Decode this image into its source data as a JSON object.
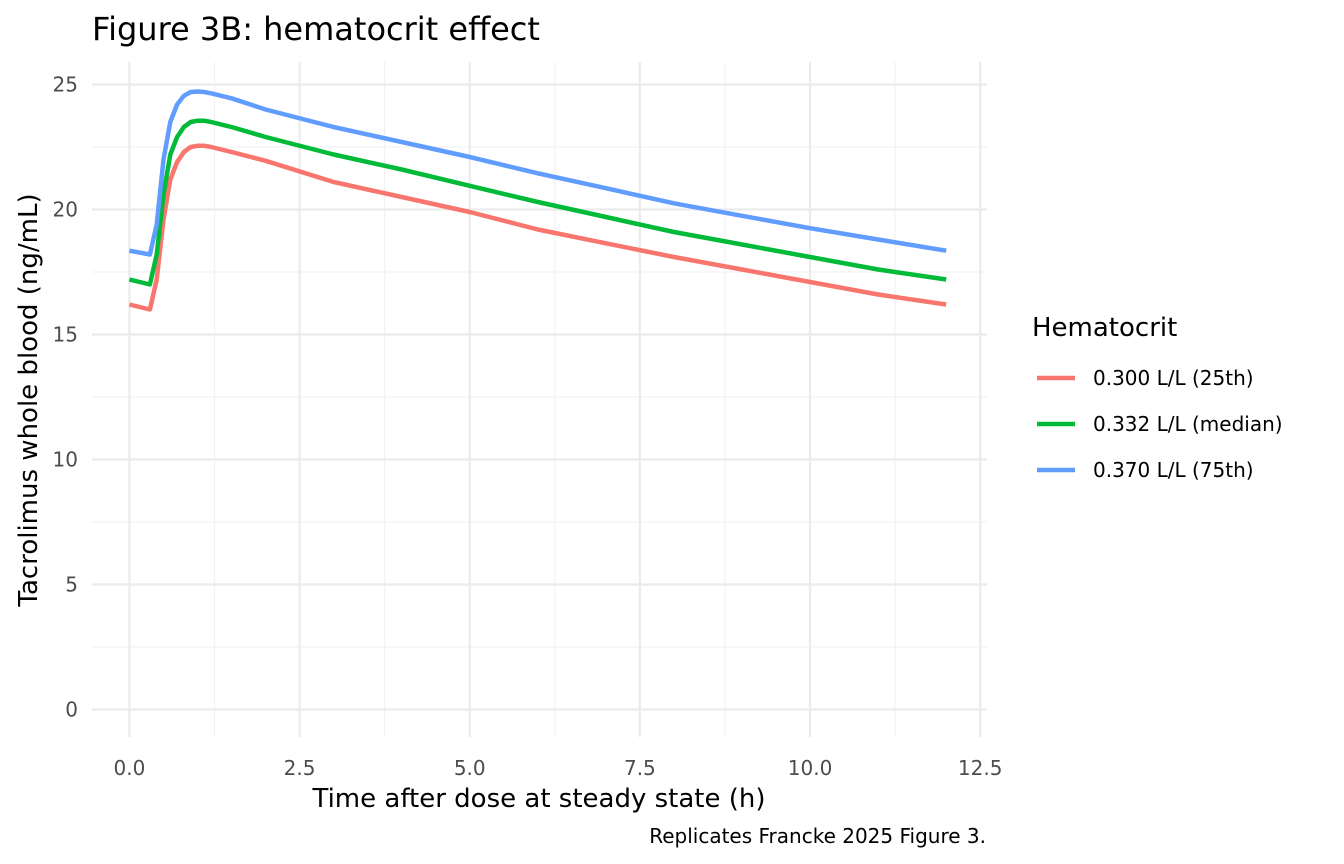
{
  "chart_data": {
    "type": "line",
    "title": "Figure 3B: hematocrit effect",
    "xlabel": "Time after dose at steady state (h)",
    "ylabel": "Tacrolimus whole blood (ng/mL)",
    "caption": "Replicates Francke 2025 Figure 3.",
    "xlim": [
      -0.55,
      12.6
    ],
    "ylim": [
      -1.1,
      25.9
    ],
    "x_ticks": [
      "0.0",
      "2.5",
      "5.0",
      "7.5",
      "10.0",
      "12.5"
    ],
    "y_ticks": [
      "0",
      "5",
      "10",
      "15",
      "20",
      "25"
    ],
    "grid": true,
    "legend": {
      "title": "Hematocrit",
      "position": "right"
    },
    "series": [
      {
        "name": "0.300 L/L (25th)",
        "color": "#F8766D",
        "x": [
          0.0,
          0.3,
          0.4,
          0.5,
          0.6,
          0.7,
          0.8,
          0.9,
          1.0,
          1.1,
          1.2,
          1.5,
          2.0,
          3.0,
          4.0,
          5.0,
          6.0,
          7.0,
          8.0,
          9.0,
          10.0,
          11.0,
          12.0
        ],
        "y": [
          16.2,
          16.0,
          17.2,
          19.6,
          21.2,
          21.9,
          22.3,
          22.5,
          22.55,
          22.55,
          22.5,
          22.3,
          21.95,
          21.1,
          20.5,
          19.9,
          19.2,
          18.65,
          18.1,
          17.6,
          17.1,
          16.6,
          16.2
        ]
      },
      {
        "name": "0.332 L/L (median)",
        "color": "#00BA38",
        "x": [
          0.0,
          0.3,
          0.4,
          0.5,
          0.6,
          0.7,
          0.8,
          0.9,
          1.0,
          1.1,
          1.2,
          1.5,
          2.0,
          3.0,
          4.0,
          5.0,
          6.0,
          7.0,
          8.0,
          9.0,
          10.0,
          11.0,
          12.0
        ],
        "y": [
          17.2,
          17.0,
          18.2,
          20.6,
          22.2,
          22.9,
          23.3,
          23.5,
          23.55,
          23.55,
          23.5,
          23.3,
          22.9,
          22.2,
          21.6,
          20.95,
          20.3,
          19.7,
          19.1,
          18.6,
          18.1,
          17.6,
          17.2
        ]
      },
      {
        "name": "0.370 L/L (75th)",
        "color": "#619CFF",
        "x": [
          0.0,
          0.3,
          0.4,
          0.5,
          0.6,
          0.7,
          0.8,
          0.9,
          1.0,
          1.1,
          1.2,
          1.5,
          2.0,
          3.0,
          4.0,
          5.0,
          6.0,
          7.0,
          8.0,
          9.0,
          10.0,
          11.0,
          12.0
        ],
        "y": [
          18.35,
          18.2,
          19.4,
          22.0,
          23.5,
          24.2,
          24.55,
          24.7,
          24.72,
          24.7,
          24.65,
          24.45,
          24.0,
          23.3,
          22.7,
          22.1,
          21.45,
          20.85,
          20.25,
          19.75,
          19.25,
          18.8,
          18.35
        ]
      }
    ]
  }
}
